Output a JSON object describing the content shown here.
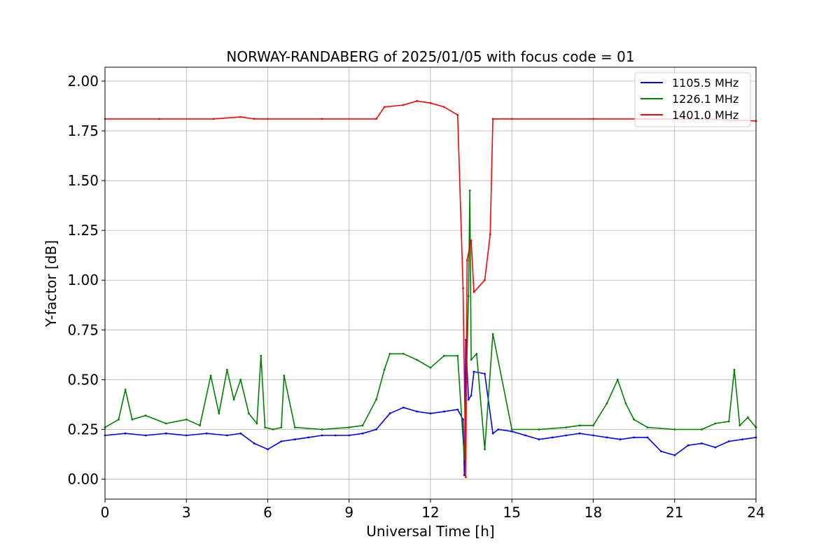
{
  "chart_data": {
    "type": "line",
    "title": "NORWAY-RANDABERG of 2025/01/05 with focus code = 01",
    "xlabel": "Universal Time [h]",
    "ylabel": "Y-factor [dB]",
    "xlim": [
      0,
      24
    ],
    "ylim": [
      -0.1,
      2.07
    ],
    "xticks": [
      0,
      3,
      6,
      9,
      12,
      15,
      18,
      21,
      24
    ],
    "xtick_labels": [
      "0",
      "3",
      "6",
      "9",
      "12",
      "15",
      "18",
      "21",
      "24"
    ],
    "yticks": [
      0.0,
      0.25,
      0.5,
      0.75,
      1.0,
      1.25,
      1.5,
      1.75,
      2.0
    ],
    "ytick_labels": [
      "0.00",
      "0.25",
      "0.50",
      "0.75",
      "1.00",
      "1.25",
      "1.50",
      "1.75",
      "2.00"
    ],
    "grid": true,
    "legend_position": "top-right",
    "series": [
      {
        "name": "1105.5 MHz",
        "color": "#0000ff",
        "x": [
          0,
          0.75,
          1.5,
          2.25,
          3.0,
          3.75,
          4.5,
          5.0,
          5.5,
          6.0,
          6.5,
          7.0,
          7.5,
          8.0,
          8.5,
          9.0,
          9.5,
          10.0,
          10.5,
          11.0,
          11.5,
          12.0,
          12.5,
          13.0,
          13.2,
          13.25,
          13.3,
          13.4,
          13.5,
          13.6,
          14.0,
          14.3,
          14.5,
          15.0,
          15.5,
          16.0,
          16.5,
          17.0,
          17.5,
          18.0,
          18.5,
          19.0,
          19.5,
          20.0,
          20.5,
          21.0,
          21.5,
          22.0,
          22.5,
          23.0,
          23.5,
          24.0
        ],
        "y": [
          0.22,
          0.23,
          0.22,
          0.23,
          0.22,
          0.23,
          0.22,
          0.23,
          0.18,
          0.15,
          0.19,
          0.2,
          0.21,
          0.22,
          0.22,
          0.22,
          0.23,
          0.25,
          0.33,
          0.36,
          0.34,
          0.33,
          0.34,
          0.35,
          0.3,
          0.02,
          0.7,
          0.4,
          0.42,
          0.54,
          0.53,
          0.23,
          0.25,
          0.24,
          0.22,
          0.2,
          0.21,
          0.22,
          0.23,
          0.22,
          0.21,
          0.2,
          0.21,
          0.21,
          0.14,
          0.12,
          0.17,
          0.18,
          0.16,
          0.19,
          0.2,
          0.21
        ]
      },
      {
        "name": "1226.1 MHz",
        "color": "#008000",
        "x": [
          0,
          0.5,
          0.75,
          1.0,
          1.5,
          2.25,
          3.0,
          3.5,
          3.9,
          4.2,
          4.5,
          4.75,
          5.0,
          5.3,
          5.6,
          5.75,
          5.9,
          6.2,
          6.5,
          6.6,
          7.0,
          8.0,
          9.0,
          9.5,
          10.0,
          10.3,
          10.5,
          11.0,
          11.5,
          12.0,
          12.5,
          13.0,
          13.25,
          13.4,
          13.45,
          13.5,
          13.7,
          14.0,
          14.3,
          15.0,
          16.0,
          17.0,
          17.5,
          18.0,
          18.5,
          18.9,
          19.2,
          19.5,
          20.0,
          21.0,
          22.0,
          22.5,
          23.0,
          23.2,
          23.4,
          23.7,
          24.0
        ],
        "y": [
          0.26,
          0.3,
          0.45,
          0.3,
          0.32,
          0.28,
          0.3,
          0.27,
          0.52,
          0.33,
          0.55,
          0.4,
          0.5,
          0.33,
          0.28,
          0.62,
          0.26,
          0.25,
          0.26,
          0.52,
          0.26,
          0.25,
          0.26,
          0.27,
          0.4,
          0.55,
          0.63,
          0.63,
          0.6,
          0.56,
          0.62,
          0.62,
          0.1,
          0.92,
          1.45,
          0.6,
          0.63,
          0.15,
          0.73,
          0.25,
          0.25,
          0.26,
          0.27,
          0.27,
          0.38,
          0.5,
          0.38,
          0.3,
          0.26,
          0.25,
          0.25,
          0.28,
          0.29,
          0.55,
          0.27,
          0.31,
          0.26
        ]
      },
      {
        "name": "1401.0 MHz",
        "color": "#ff0000",
        "x": [
          0,
          2.0,
          4.0,
          5.0,
          5.5,
          6.0,
          8.0,
          10.0,
          10.3,
          11.0,
          11.5,
          12.0,
          12.5,
          13.0,
          13.2,
          13.3,
          13.35,
          13.5,
          13.6,
          14.0,
          14.2,
          14.3,
          15.0,
          18.0,
          20.0,
          22.0,
          24.0
        ],
        "y": [
          1.81,
          1.81,
          1.81,
          1.82,
          1.81,
          1.81,
          1.81,
          1.81,
          1.87,
          1.88,
          1.9,
          1.89,
          1.87,
          1.83,
          0.96,
          0.01,
          1.1,
          1.2,
          0.94,
          1.0,
          1.23,
          1.81,
          1.81,
          1.81,
          1.81,
          1.81,
          1.8
        ]
      }
    ]
  }
}
